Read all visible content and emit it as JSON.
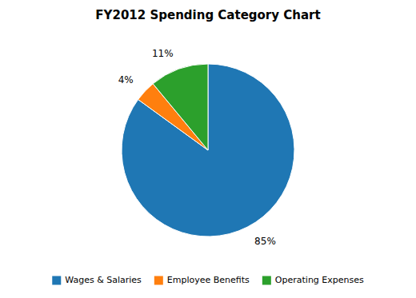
{
  "chart_data": {
    "type": "pie",
    "title": "FY2012 Spending Category Chart",
    "categories": [
      "Wages & Salaries",
      "Employee Benefits",
      "Operating Expenses"
    ],
    "values": [
      85,
      4,
      11
    ],
    "value_labels": [
      "85%",
      "4%",
      "11%"
    ],
    "data_labels": true,
    "legend": "bottom"
  }
}
